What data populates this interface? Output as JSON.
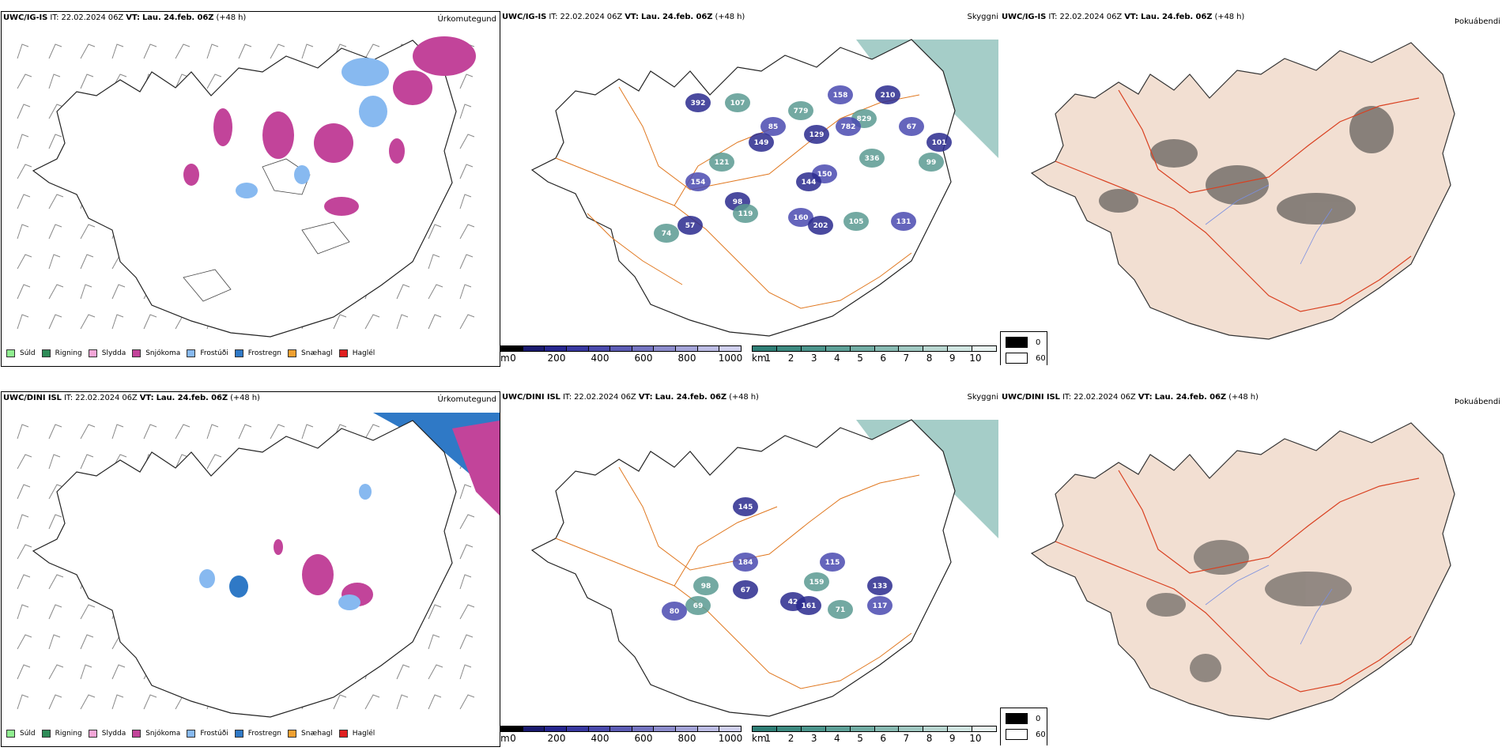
{
  "rows": [
    {
      "model": "UWC/IG-IS",
      "it_label": "IT:",
      "it_value": "22.02.2024 06Z",
      "vt_label": "VT:",
      "vt_value": "Lau. 24.feb. 06Z",
      "lead": "(+48 h)"
    },
    {
      "model": "UWC/DINI ISL",
      "it_label": "IT:",
      "it_value": "22.02.2024 06Z",
      "vt_label": "VT:",
      "vt_value": "Lau. 24.feb. 06Z",
      "lead": "(+48 h)"
    }
  ],
  "panel_titles": {
    "precip": "Úrkomutegund",
    "cloud": "Skyggni",
    "fog": "Þokuábendi"
  },
  "precip_legend": [
    {
      "label": "Súld",
      "color": "#90ee90"
    },
    {
      "label": "Rigning",
      "color": "#2e8b57"
    },
    {
      "label": "Slydda",
      "color": "#f4a6d7"
    },
    {
      "label": "Snjókoma",
      "color": "#c2449a"
    },
    {
      "label": "Frostúði",
      "color": "#87b9f0"
    },
    {
      "label": "Frostregn",
      "color": "#2f79c6"
    },
    {
      "label": "Snæhagl",
      "color": "#f0a030"
    },
    {
      "label": "Haglél",
      "color": "#e02020"
    }
  ],
  "ceiling_scale": {
    "unit": "m",
    "ticks": [
      "0",
      "200",
      "400",
      "600",
      "800",
      "1000"
    ],
    "colors": [
      "#000000",
      "#1a1a6e",
      "#26268e",
      "#3838a0",
      "#4a4aac",
      "#5c5cb4",
      "#7474c0",
      "#8c8ccc",
      "#a4a4d8",
      "#bcbce4",
      "#d0d0ee"
    ]
  },
  "visibility_scale": {
    "unit": "km",
    "ticks": [
      "1",
      "2",
      "3",
      "4",
      "5",
      "6",
      "7",
      "8",
      "9",
      "10"
    ],
    "colors": [
      "#2f7f76",
      "#3d8a80",
      "#4c958c",
      "#5ea198",
      "#72ada4",
      "#88bab2",
      "#a0c8c1",
      "#b8d6d0",
      "#d0e5e1",
      "#e8f3f1"
    ]
  },
  "fog_legend": [
    {
      "label": "0",
      "color": "#000000"
    },
    {
      "label": "60",
      "color": "#ffffff"
    }
  ],
  "ceiling_labels_top": [
    "392",
    "107",
    "85",
    "149",
    "779",
    "158",
    "210",
    "829",
    "782",
    "129",
    "336",
    "67",
    "101",
    "99",
    "150",
    "144",
    "121",
    "154",
    "98",
    "119",
    "160",
    "202",
    "105",
    "131",
    "57",
    "74"
  ],
  "ceiling_labels_bottom": [
    "145",
    "98",
    "184",
    "67",
    "69",
    "80",
    "42",
    "159",
    "115",
    "161",
    "71",
    "117",
    "133"
  ]
}
